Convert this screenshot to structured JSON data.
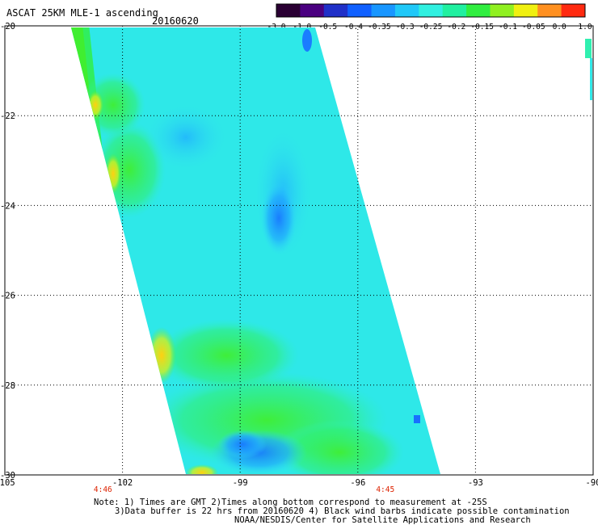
{
  "title": "ASCAT 25KM MLE-1 ascending",
  "date": "20160620",
  "colorbar": {
    "labels": [
      "-3.0",
      "-1.0",
      "-0.5",
      "-0.4",
      "-0.35",
      "-0.3",
      "-0.25",
      "-0.2",
      "-0.15",
      "-0.1",
      "-0.05",
      "0.0",
      "1.0"
    ],
    "colors": [
      "#2a0033",
      "#4a0080",
      "#2030c8",
      "#1060ff",
      "#1896ff",
      "#20c8f8",
      "#30f0e0",
      "#20f0a0",
      "#30ee40",
      "#90f020",
      "#f0f010",
      "#ff9020",
      "#ff2a10"
    ]
  },
  "map": {
    "lon_ticks": [
      -105,
      -102,
      -99,
      -96,
      -93,
      -90
    ],
    "lon_labels": [
      "-105",
      "-102",
      "-99",
      "-96",
      "-93",
      "-90"
    ],
    "lat_ticks": [
      -20,
      -22,
      -24,
      -26,
      -28,
      -30
    ],
    "lat_labels": [
      "-20",
      "-22",
      "-24",
      "-26",
      "-28",
      "-30"
    ],
    "lon_range": [
      -105,
      -90
    ],
    "lat_range": [
      -30,
      -20
    ],
    "times": [
      {
        "label": "4:46",
        "lon": -102.5
      },
      {
        "label": "4:45",
        "lon": -95.3
      }
    ],
    "time_color": "#dd2200"
  },
  "notes": {
    "line1": "Note: 1) Times are GMT 2)Times along bottom correspond to measurement at -25S",
    "line2": "3)Data buffer is 22 hrs from 20160620 4) Black wind barbs indicate possible contamination",
    "line3": "NOAA/NESDIS/Center for Satellite Applications and Research"
  }
}
